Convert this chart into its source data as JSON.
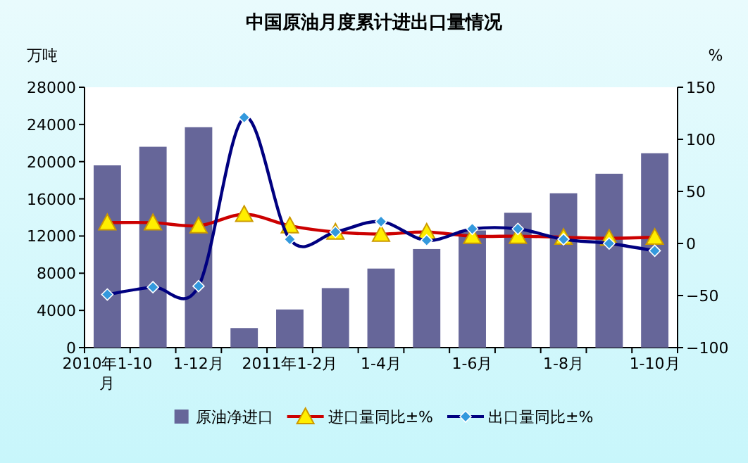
{
  "chart_data": {
    "type": "bar",
    "title": "中国原油月度累计进出口量情况",
    "categories": [
      "2010年1-10月",
      null,
      "1-12月",
      null,
      "2011年1-2月",
      null,
      "1-4月",
      null,
      "1-6月",
      null,
      "1-8月",
      null,
      "1-10月"
    ],
    "series": [
      {
        "name": "原油净进口",
        "color": "#666699",
        "values": [
          19600,
          21600,
          23700,
          2100,
          4100,
          6400,
          8500,
          10600,
          12600,
          14500,
          16600,
          18700,
          20900
        ]
      },
      {
        "name": "进口量同比±%",
        "type": "line",
        "axis": "y2",
        "marker": "triangle",
        "color": "#cc0000",
        "values": [
          20,
          20,
          17,
          28,
          17,
          11,
          9,
          11,
          7,
          7,
          6,
          5,
          6
        ]
      },
      {
        "name": "出口量同比±%",
        "type": "line",
        "axis": "y2",
        "marker": "diamond",
        "color": "#000080",
        "values": [
          -49,
          -42,
          -41,
          121,
          4,
          11,
          21,
          3,
          14,
          14,
          4,
          0,
          -7
        ]
      }
    ],
    "ylabel": "万吨",
    "y2label": "%",
    "ylim": [
      0,
      28000
    ],
    "yticks": [
      0,
      4000,
      8000,
      12000,
      16000,
      20000,
      24000,
      28000
    ],
    "y2lim": [
      -100,
      150
    ],
    "y2ticks": [
      -100,
      -50,
      0,
      50,
      100,
      150
    ],
    "legend": "bottom",
    "grid": false
  }
}
